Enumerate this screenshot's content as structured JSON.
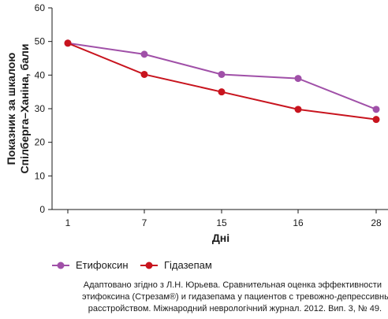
{
  "chart_data": {
    "type": "line",
    "categories": [
      "1",
      "7",
      "15",
      "16",
      "28"
    ],
    "series": [
      {
        "name": "Етифоксин",
        "values": [
          49.5,
          46.2,
          40.2,
          39.0,
          29.8
        ],
        "color": "#a050a8"
      },
      {
        "name": "Гідазепам",
        "values": [
          49.5,
          40.2,
          35.0,
          29.8,
          26.8
        ],
        "color": "#c8141e"
      }
    ],
    "ylim": [
      0,
      60
    ],
    "yticks": [
      "0",
      "10",
      "20",
      "30",
      "40",
      "50",
      "60"
    ],
    "xlabel": "Дні",
    "ylabel_lines": [
      "Показник за шкалою",
      "Спілберга–Ханіна, бали"
    ],
    "legend_position": "bottom-left",
    "grid": false
  },
  "source_note": {
    "lines": [
      "Адаптовано згідно з Л.Н. Юрьева. Сравнительная оценка эффективности",
      "этифоксина (Стрезам®) и гидазепама у пациентов с тревожно-депрессивным",
      "расстройством. Міжнародний неврологічний журнал. 2012. Вип. 3, № 49."
    ]
  }
}
